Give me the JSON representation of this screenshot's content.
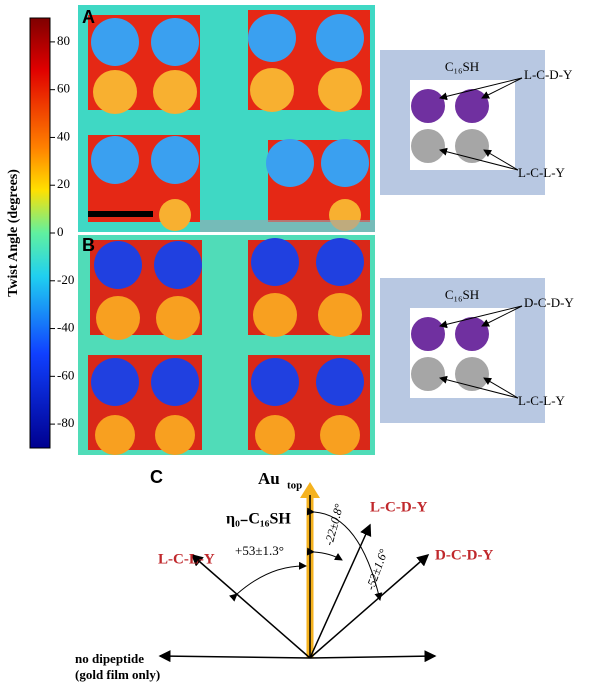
{
  "colorbar": {
    "label": "Twist Angle (degrees)",
    "lim": [
      -90,
      90
    ],
    "ticks": [
      80,
      60,
      40,
      20,
      0,
      -20,
      -40,
      -60,
      -80
    ]
  },
  "panels": [
    {
      "label": "A",
      "schematic": {
        "monolayer": "C₁₆SH",
        "top_label": "L-C-D-Y",
        "bottom_label": "L-C-L-Y"
      }
    },
    {
      "label": "B",
      "schematic": {
        "monolayer": "C₁₆SH",
        "top_label": "D-C-D-Y",
        "bottom_label": "L-C-L-Y"
      }
    }
  ],
  "diagram": {
    "label": "C",
    "au": "Au",
    "au_sub": "top",
    "eta": "η₀₋C₁₆SH",
    "lcdy": "L-C-D-Y",
    "dcdy": "D-C-D-Y",
    "lcly": "L-C-L-Y",
    "angle_lcly": "+53±1.3°",
    "angle_lcdy": "-22±0.8°",
    "angle_dcdy": "-52±1.6°",
    "no_dipeptide": "no dipeptide",
    "gold_only": "(gold film only)"
  }
}
